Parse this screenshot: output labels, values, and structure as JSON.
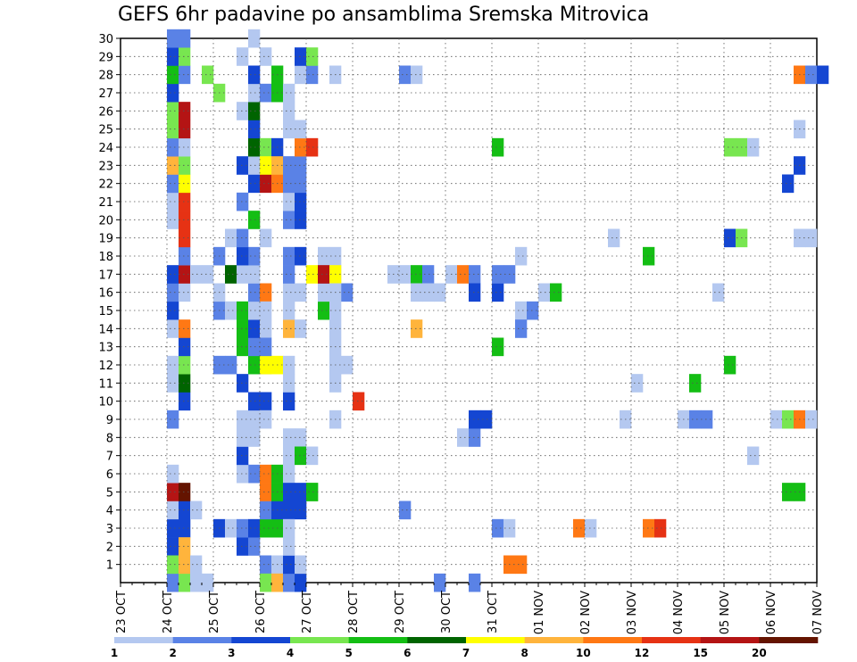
{
  "chart_data": {
    "type": "heatmap",
    "title": "GEFS 6hr padavine po ansamblima Sremska Mitrovica",
    "xlabel": "",
    "ylabel": "",
    "x_tick_labels": [
      "23 OCT",
      "24 OCT",
      "25 OCT",
      "26 OCT",
      "27 OCT",
      "28 OCT",
      "29 OCT",
      "30 OCT",
      "31 OCT",
      "01 NOV",
      "02 NOV",
      "03 NOV",
      "04 NOV",
      "05 NOV",
      "06 NOV",
      "07 NOV"
    ],
    "x_range_steps": [
      0,
      60
    ],
    "steps_per_day": 4,
    "y_tick_labels": [
      "1",
      "2",
      "3",
      "4",
      "5",
      "6",
      "7",
      "8",
      "9",
      "10",
      "11",
      "12",
      "13",
      "14",
      "15",
      "16",
      "17",
      "18",
      "19",
      "20",
      "21",
      "22",
      "23",
      "24",
      "25",
      "26",
      "27",
      "28",
      "29",
      "30"
    ],
    "y_range": [
      0,
      30
    ],
    "grid": true,
    "color_levels": [
      1,
      2,
      3,
      4,
      5,
      6,
      7,
      8,
      10,
      12,
      15,
      20
    ],
    "colorbar_colors": [
      "#b4c8f0",
      "#5a82e6",
      "#1446d2",
      "#78e650",
      "#14be14",
      "#006400",
      "#ffff00",
      "#ffb43c",
      "#ff7814",
      "#e63214",
      "#b41414",
      "#641400"
    ],
    "cells_format": "[time_step_index, member, color_level_index]",
    "cells": [
      [
        4,
        0,
        2
      ],
      [
        4,
        1,
        2
      ],
      [
        4,
        2,
        2
      ],
      [
        4,
        3,
        2
      ],
      [
        5,
        3,
        2
      ],
      [
        4,
        4,
        0
      ],
      [
        5,
        4,
        2
      ],
      [
        6,
        4,
        0
      ],
      [
        4,
        5,
        10
      ],
      [
        5,
        5,
        11
      ],
      [
        4,
        6,
        0
      ],
      [
        4,
        9,
        1
      ],
      [
        5,
        10,
        2
      ],
      [
        4,
        11,
        0
      ],
      [
        5,
        11,
        5
      ],
      [
        4,
        12,
        0
      ],
      [
        5,
        12,
        3
      ],
      [
        5,
        13,
        2
      ],
      [
        4,
        14,
        0
      ],
      [
        5,
        14,
        8
      ],
      [
        4,
        15,
        2
      ],
      [
        4,
        16,
        1
      ],
      [
        5,
        16,
        0
      ],
      [
        4,
        17,
        2
      ],
      [
        5,
        17,
        10
      ],
      [
        5,
        18,
        1
      ],
      [
        5,
        19,
        9
      ],
      [
        4,
        20,
        0
      ],
      [
        5,
        20,
        9
      ],
      [
        4,
        21,
        0
      ],
      [
        5,
        21,
        9
      ],
      [
        4,
        22,
        1
      ],
      [
        5,
        22,
        6
      ],
      [
        4,
        23,
        7
      ],
      [
        5,
        23,
        3
      ],
      [
        4,
        24,
        1
      ],
      [
        5,
        24,
        0
      ],
      [
        4,
        25,
        3
      ],
      [
        5,
        25,
        10
      ],
      [
        4,
        26,
        3
      ],
      [
        5,
        26,
        10
      ],
      [
        4,
        27,
        2
      ],
      [
        4,
        28,
        4
      ],
      [
        5,
        28,
        1
      ],
      [
        4,
        29,
        2
      ],
      [
        5,
        29,
        3
      ],
      [
        4,
        30,
        1
      ],
      [
        5,
        30,
        1
      ],
      [
        4,
        0,
        1
      ],
      [
        5,
        0,
        3
      ],
      [
        4,
        1,
        3
      ],
      [
        5,
        1,
        7
      ],
      [
        5,
        2,
        7
      ],
      [
        6,
        0,
        0
      ],
      [
        7,
        0,
        0
      ],
      [
        8,
        3,
        2
      ],
      [
        9,
        3,
        0
      ],
      [
        8,
        12,
        1
      ],
      [
        9,
        12,
        1
      ],
      [
        8,
        15,
        1
      ],
      [
        9,
        15,
        0
      ],
      [
        8,
        16,
        0
      ],
      [
        8,
        18,
        1
      ],
      [
        7,
        17,
        0
      ],
      [
        6,
        17,
        0
      ],
      [
        9,
        17,
        5
      ],
      [
        8,
        27,
        3
      ],
      [
        7,
        28,
        3
      ],
      [
        10,
        2,
        2
      ],
      [
        11,
        2,
        1
      ],
      [
        10,
        3,
        1
      ],
      [
        11,
        3,
        2
      ],
      [
        11,
        6,
        1
      ],
      [
        10,
        6,
        0
      ],
      [
        10,
        7,
        2
      ],
      [
        10,
        8,
        0
      ],
      [
        11,
        8,
        0
      ],
      [
        10,
        9,
        0
      ],
      [
        11,
        9,
        0
      ],
      [
        10,
        11,
        2
      ],
      [
        11,
        10,
        2
      ],
      [
        12,
        10,
        2
      ],
      [
        11,
        12,
        4
      ],
      [
        12,
        12,
        5
      ],
      [
        10,
        13,
        4
      ],
      [
        11,
        13,
        1
      ],
      [
        10,
        14,
        4
      ],
      [
        11,
        14,
        2
      ],
      [
        10,
        15,
        4
      ],
      [
        11,
        15,
        0
      ],
      [
        11,
        16,
        1
      ],
      [
        12,
        16,
        8
      ],
      [
        10,
        17,
        0
      ],
      [
        11,
        17,
        0
      ],
      [
        11,
        18,
        1
      ],
      [
        10,
        18,
        2
      ],
      [
        9,
        19,
        0
      ],
      [
        10,
        19,
        1
      ],
      [
        11,
        20,
        4
      ],
      [
        10,
        21,
        1
      ],
      [
        11,
        22,
        2
      ],
      [
        12,
        22,
        10
      ],
      [
        13,
        22,
        8
      ],
      [
        10,
        23,
        2
      ],
      [
        11,
        23,
        0
      ],
      [
        11,
        24,
        5
      ],
      [
        12,
        24,
        3
      ],
      [
        13,
        24,
        2
      ],
      [
        11,
        25,
        2
      ],
      [
        10,
        26,
        0
      ],
      [
        11,
        26,
        5
      ],
      [
        11,
        27,
        0
      ],
      [
        12,
        27,
        1
      ],
      [
        13,
        27,
        4
      ],
      [
        11,
        28,
        2
      ],
      [
        13,
        28,
        4
      ],
      [
        10,
        29,
        0
      ],
      [
        12,
        29,
        0
      ],
      [
        11,
        30,
        0
      ],
      [
        12,
        1,
        1
      ],
      [
        13,
        1,
        0
      ],
      [
        12,
        0,
        3
      ],
      [
        13,
        0,
        7
      ],
      [
        12,
        3,
        4
      ],
      [
        13,
        3,
        4
      ],
      [
        12,
        4,
        1
      ],
      [
        13,
        4,
        2
      ],
      [
        14,
        4,
        2
      ],
      [
        12,
        5,
        8
      ],
      [
        13,
        5,
        4
      ],
      [
        12,
        6,
        8
      ],
      [
        13,
        6,
        4
      ],
      [
        14,
        6,
        0
      ],
      [
        12,
        9,
        0
      ],
      [
        12,
        12,
        6
      ],
      [
        13,
        12,
        6
      ],
      [
        12,
        14,
        0
      ],
      [
        12,
        15,
        0
      ],
      [
        12,
        23,
        6
      ],
      [
        13,
        23,
        7
      ],
      [
        14,
        23,
        0
      ],
      [
        14,
        14,
        7
      ],
      [
        15,
        14,
        0
      ],
      [
        12,
        13,
        1
      ],
      [
        12,
        19,
        0
      ],
      [
        14,
        0,
        1
      ],
      [
        15,
        0,
        2
      ],
      [
        14,
        1,
        2
      ],
      [
        15,
        1,
        0
      ],
      [
        15,
        4,
        2
      ],
      [
        16,
        5,
        3
      ],
      [
        14,
        5,
        2
      ],
      [
        15,
        5,
        2
      ],
      [
        16,
        5,
        4
      ],
      [
        14,
        2,
        0
      ],
      [
        14,
        3,
        0
      ],
      [
        14,
        7,
        0
      ],
      [
        14,
        8,
        0
      ],
      [
        15,
        8,
        0
      ],
      [
        15,
        7,
        4
      ],
      [
        16,
        7,
        0
      ],
      [
        14,
        10,
        2
      ],
      [
        14,
        11,
        0
      ],
      [
        14,
        12,
        0
      ],
      [
        14,
        15,
        0
      ],
      [
        14,
        16,
        0
      ],
      [
        14,
        18,
        1
      ],
      [
        15,
        18,
        2
      ],
      [
        14,
        20,
        1
      ],
      [
        15,
        20,
        2
      ],
      [
        14,
        21,
        0
      ],
      [
        15,
        21,
        2
      ],
      [
        14,
        22,
        1
      ],
      [
        15,
        22,
        1
      ],
      [
        14,
        23,
        1
      ],
      [
        15,
        23,
        1
      ],
      [
        15,
        24,
        8
      ],
      [
        16,
        24,
        9
      ],
      [
        14,
        25,
        0
      ],
      [
        15,
        25,
        0
      ],
      [
        14,
        26,
        0
      ],
      [
        14,
        27,
        0
      ],
      [
        15,
        28,
        0
      ],
      [
        16,
        28,
        1
      ],
      [
        15,
        29,
        2
      ],
      [
        16,
        29,
        3
      ],
      [
        14,
        17,
        1
      ],
      [
        15,
        16,
        0
      ],
      [
        17,
        15,
        4
      ],
      [
        17,
        16,
        0
      ],
      [
        18,
        16,
        0
      ],
      [
        19,
        16,
        1
      ],
      [
        18,
        17,
        0
      ],
      [
        17,
        17,
        1
      ],
      [
        18,
        11,
        0
      ],
      [
        18,
        9,
        0
      ],
      [
        18,
        28,
        0
      ],
      [
        18,
        12,
        0
      ],
      [
        19,
        12,
        0
      ],
      [
        18,
        13,
        0
      ],
      [
        18,
        14,
        0
      ],
      [
        18,
        15,
        0
      ],
      [
        17,
        18,
        0
      ],
      [
        18,
        18,
        0
      ],
      [
        16,
        17,
        6
      ],
      [
        17,
        17,
        10
      ],
      [
        18,
        17,
        6
      ],
      [
        18,
        16,
        0
      ],
      [
        20,
        10,
        9
      ],
      [
        24,
        4,
        1
      ],
      [
        23,
        17,
        0
      ],
      [
        24,
        17,
        0
      ],
      [
        25,
        17,
        4
      ],
      [
        26,
        17,
        1
      ],
      [
        25,
        16,
        0
      ],
      [
        26,
        16,
        0
      ],
      [
        24,
        28,
        1
      ],
      [
        25,
        28,
        0
      ],
      [
        25,
        14,
        7
      ],
      [
        27,
        0,
        1
      ],
      [
        27,
        16,
        0
      ],
      [
        28,
        17,
        0
      ],
      [
        29,
        17,
        8
      ],
      [
        30,
        17,
        1
      ],
      [
        30,
        16,
        2
      ],
      [
        29,
        8,
        0
      ],
      [
        30,
        8,
        1
      ],
      [
        30,
        9,
        2
      ],
      [
        31,
        9,
        2
      ],
      [
        32,
        16,
        2
      ],
      [
        32,
        17,
        1
      ],
      [
        33,
        17,
        1
      ],
      [
        32,
        3,
        1
      ],
      [
        33,
        3,
        0
      ],
      [
        34,
        18,
        0
      ],
      [
        34,
        15,
        0
      ],
      [
        35,
        15,
        1
      ],
      [
        34,
        14,
        1
      ],
      [
        32,
        13,
        4
      ],
      [
        32,
        24,
        4
      ],
      [
        33,
        1,
        8
      ],
      [
        34,
        1,
        8
      ],
      [
        36,
        16,
        0
      ],
      [
        37,
        16,
        4
      ],
      [
        39,
        3,
        8
      ],
      [
        40,
        3,
        0
      ],
      [
        42,
        19,
        0
      ],
      [
        43,
        9,
        0
      ],
      [
        44,
        11,
        0
      ],
      [
        45,
        3,
        8
      ],
      [
        46,
        3,
        9
      ],
      [
        45,
        18,
        4
      ],
      [
        48,
        9,
        0
      ],
      [
        49,
        9,
        1
      ],
      [
        50,
        9,
        1
      ],
      [
        49,
        11,
        4
      ],
      [
        51,
        16,
        0
      ],
      [
        52,
        12,
        4
      ],
      [
        52,
        19,
        2
      ],
      [
        53,
        19,
        3
      ],
      [
        52,
        24,
        3
      ],
      [
        53,
        24,
        3
      ],
      [
        54,
        24,
        0
      ],
      [
        54,
        7,
        0
      ],
      [
        56,
        9,
        0
      ],
      [
        57,
        9,
        3
      ],
      [
        58,
        9,
        8
      ],
      [
        59,
        9,
        0
      ],
      [
        57,
        22,
        2
      ],
      [
        58,
        23,
        2
      ],
      [
        58,
        25,
        0
      ],
      [
        58,
        28,
        8
      ],
      [
        59,
        28,
        1
      ],
      [
        60,
        28,
        2
      ],
      [
        57,
        5,
        4
      ],
      [
        58,
        5,
        4
      ],
      [
        59,
        19,
        0
      ],
      [
        58,
        19,
        0
      ],
      [
        30,
        0,
        1
      ],
      [
        6,
        1,
        0
      ]
    ]
  }
}
